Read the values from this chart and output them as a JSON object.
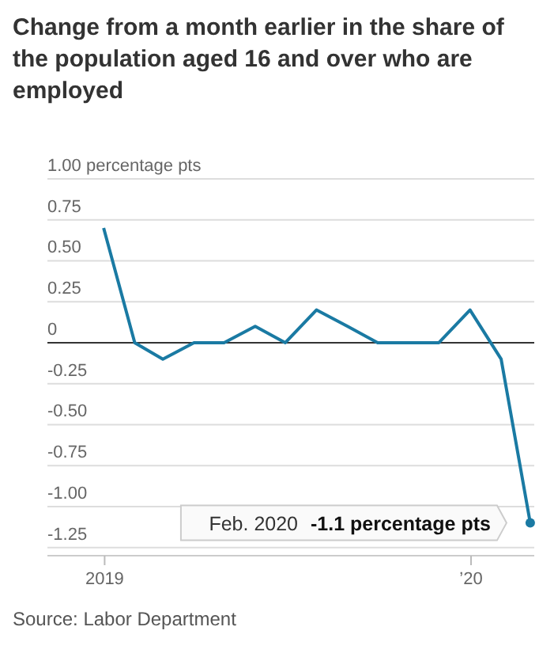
{
  "chart_data": {
    "type": "line",
    "title": "Change from a month earlier in the share of the population aged 16 and over who are employed",
    "x": [
      "2018-12-31",
      "2019-01-31",
      "2019-02-28",
      "2019-03-31",
      "2019-04-30",
      "2019-05-31",
      "2019-06-30",
      "2019-07-31",
      "2019-08-31",
      "2019-09-30",
      "2019-10-31",
      "2019-11-30",
      "2019-12-31",
      "2020-01-31",
      "2020-02-29"
    ],
    "series": [
      {
        "color": "#1a7aa3",
        "values": [
          0.7,
          0,
          -0.1,
          0,
          0,
          0.1,
          0,
          0.2,
          0.1,
          0,
          0,
          0,
          0.2,
          -0.1,
          -1.1
        ]
      }
    ],
    "xlim": [
      "2018-11-05",
      "2020-03-04"
    ],
    "xticks": [
      {
        "value": "2019-01-01",
        "label": "2019"
      },
      {
        "value": "2020-01-01",
        "label": "’20"
      }
    ],
    "ylim": [
      -1.3,
      1.0
    ],
    "yticks": [
      {
        "value": 1,
        "label": "1.00 percentage pts"
      },
      {
        "value": 0.75,
        "label": "0.75"
      },
      {
        "value": 0.5,
        "label": "0.50"
      },
      {
        "value": 0.25,
        "label": "0.25"
      },
      {
        "value": 0,
        "label": "0"
      },
      {
        "value": -0.25,
        "label": "-0.25"
      },
      {
        "value": -0.5,
        "label": "-0.50"
      },
      {
        "value": -0.75,
        "label": "-0.75"
      },
      {
        "value": -1,
        "label": "-1.00"
      },
      {
        "value": -1.25,
        "label": "-1.25"
      }
    ],
    "grid": "y",
    "marker": "none",
    "line_style": "solid",
    "ref_lines": [
      {
        "axis": "y",
        "value": 0,
        "color": "#333333"
      }
    ],
    "annotations": [
      "Feb. 2020",
      {
        "text": "-1.1 percentage pts",
        "x": "2020-02-29",
        "y": -1.1
      },
      "Source: Labor Department"
    ]
  }
}
